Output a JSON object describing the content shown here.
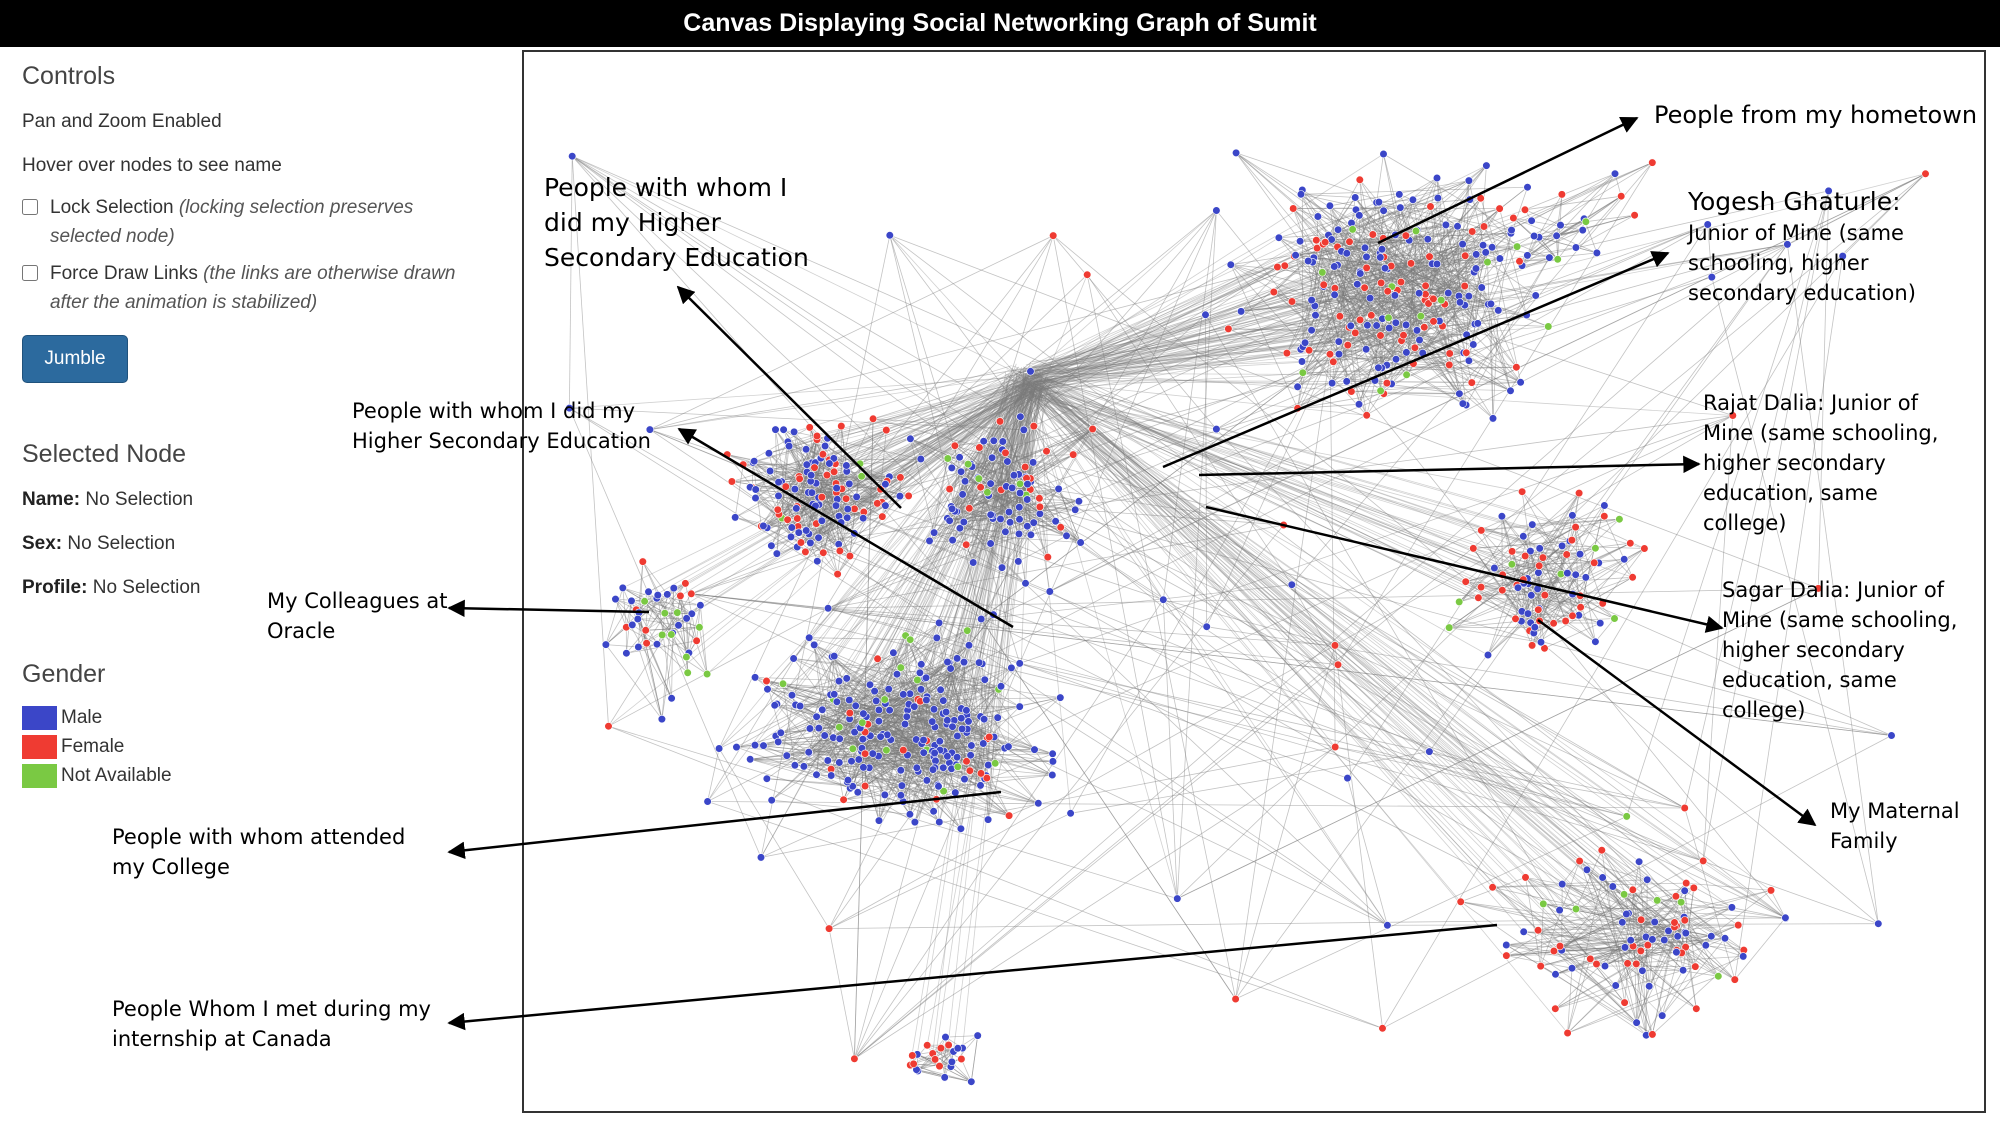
{
  "header": {
    "title": "Canvas Displaying Social Networking Graph of Sumit"
  },
  "controls": {
    "heading": "Controls",
    "pan_zoom": "Pan and Zoom Enabled",
    "hover_hint": "Hover over nodes to see name",
    "lock_selection": {
      "label": "Lock Selection",
      "note": "(locking selection preserves selected node)",
      "checked": false
    },
    "force_draw": {
      "label": "Force Draw Links",
      "note": "(the links are otherwise drawn after the animation is stabilized)",
      "checked": false
    },
    "jumble_label": "Jumble"
  },
  "selected_node": {
    "heading": "Selected Node",
    "name_label": "Name:",
    "name_value": "No Selection",
    "sex_label": "Sex:",
    "sex_value": "No Selection",
    "profile_label": "Profile:",
    "profile_value": "No Selection"
  },
  "legend": {
    "heading": "Gender",
    "items": [
      {
        "label": "Male",
        "color": "#3b46c8"
      },
      {
        "label": "Female",
        "color": "#ef3b32"
      },
      {
        "label": "Not Available",
        "color": "#7ac943"
      }
    ]
  },
  "graph": {
    "edge_color": "#7a7a7a",
    "node_colors": {
      "male": "#3b46c8",
      "female": "#ef3b32",
      "na": "#7ac943"
    }
  },
  "annotations": {
    "hometown": "People from my hometown",
    "higher_secondary_1": "People with whom I did my Higher Secondary Education",
    "higher_secondary_2": "People with whom I did my Higher Secondary Education",
    "yogesh": "Yogesh Ghaturle:",
    "yogesh_desc": "Junior of Mine (same schooling, higher secondary education)",
    "rajat": "Rajat Dalia: Junior of Mine (same schooling, higher secondary education, same college)",
    "sagar": "Sagar Dalia: Junior of Mine (same schooling, higher secondary education, same college)",
    "colleagues": "My Colleagues at Oracle",
    "maternal": "My Maternal Family",
    "college": "People with whom attended my College",
    "internship": "People Whom I met during my internship at Canada"
  }
}
